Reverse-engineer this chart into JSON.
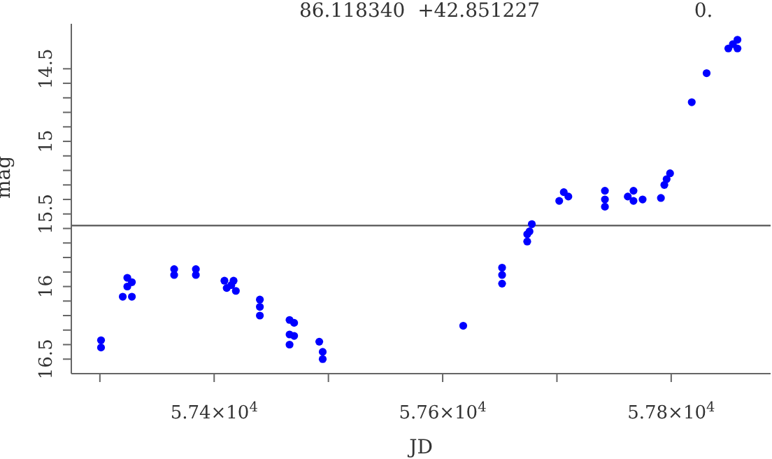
{
  "chart_data": {
    "type": "scatter",
    "title": "86.118340  +42.851227",
    "annotations": [
      "0."
    ],
    "xlabel": "JD",
    "ylabel": "mag",
    "x": [
      57301,
      57301,
      57320,
      57324,
      57324,
      57328,
      57328,
      57365,
      57365,
      57384,
      57384,
      57409,
      57415,
      57417,
      57419,
      57411,
      57440,
      57440,
      57440,
      57466,
      57470,
      57466,
      57470,
      57466,
      57492,
      57495,
      57495,
      57618,
      57652,
      57652,
      57652,
      57674,
      57676,
      57678,
      57674,
      57702,
      57706,
      57710,
      57742,
      57742,
      57742,
      57762,
      57767,
      57767,
      57775,
      57791,
      57794,
      57796,
      57799,
      57818,
      57831,
      57850,
      57854,
      57858,
      57858
    ],
    "series": [
      {
        "color": "#0000ff",
        "values": [
          16.37,
          16.42,
          16.07,
          15.94,
          16.0,
          15.97,
          16.07,
          15.88,
          15.92,
          15.88,
          15.92,
          15.96,
          15.99,
          15.96,
          16.03,
          16.01,
          16.09,
          16.14,
          16.2,
          16.23,
          16.25,
          16.33,
          16.34,
          16.4,
          16.38,
          16.45,
          16.5,
          16.27,
          15.87,
          15.92,
          15.98,
          15.69,
          15.62,
          15.57,
          15.64,
          15.41,
          15.35,
          15.38,
          15.34,
          15.4,
          15.45,
          15.38,
          15.34,
          15.41,
          15.4,
          15.39,
          15.3,
          15.26,
          15.22,
          14.73,
          14.53,
          14.36,
          14.33,
          14.3,
          14.36
        ]
      }
    ],
    "marker": "circle",
    "xlim": [
      57275,
      57887
    ],
    "xticks": [
      {
        "value": 57300,
        "label": null
      },
      {
        "value": 57400,
        "label": "5.74×10$^{4}$"
      },
      {
        "value": 57500,
        "label": null
      },
      {
        "value": 57600,
        "label": "5.76×10$^{4}$"
      },
      {
        "value": 57700,
        "label": null
      },
      {
        "value": 57800,
        "label": "5.78×10$^{4}$"
      }
    ],
    "ylim": [
      16.6,
      14.19
    ],
    "yticks": [
      14.5,
      {
        "value": 14.6,
        "label": null
      },
      {
        "value": 14.7,
        "label": null
      },
      {
        "value": 14.8,
        "label": null
      },
      {
        "value": 14.9,
        "label": null
      },
      15,
      {
        "value": 15.1,
        "label": null
      },
      {
        "value": 15.2,
        "label": null
      },
      {
        "value": 15.3,
        "label": null
      },
      {
        "value": 15.4,
        "label": null
      },
      15.5,
      {
        "value": 15.6,
        "label": null
      },
      {
        "value": 15.7,
        "label": null
      },
      {
        "value": 15.8,
        "label": null
      },
      {
        "value": 15.9,
        "label": null
      },
      16,
      {
        "value": 16.1,
        "label": null
      },
      {
        "value": 16.2,
        "label": null
      },
      {
        "value": 16.3,
        "label": null
      },
      {
        "value": 16.4,
        "label": null
      },
      16.5
    ],
    "ref_lines": [
      {
        "axis": "y",
        "value": 15.58,
        "color": "#555555"
      }
    ],
    "grid": false,
    "legend": false
  }
}
